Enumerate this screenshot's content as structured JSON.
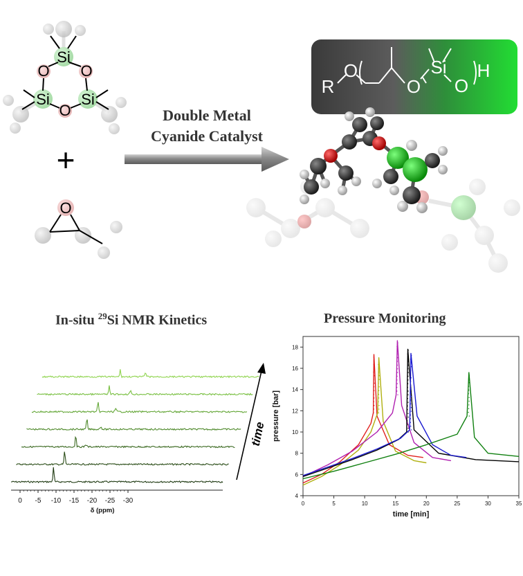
{
  "reaction": {
    "monomer1_atoms": [
      "Si",
      "O",
      "O",
      "Si",
      "O",
      "Si"
    ],
    "monomer2_atoms": [
      "O"
    ],
    "plus_sign": "+",
    "catalyst_line1": "Double Metal",
    "catalyst_line2": "Cyanide Catalyst",
    "product": {
      "R": "R",
      "O1": "O",
      "O2": "O",
      "Si": "Si",
      "O3": "O",
      "H": "H"
    }
  },
  "nmr": {
    "title_prefix": "In-situ ",
    "title_sup": "29",
    "title_suffix": "Si NMR Kinetics",
    "time_label": "time",
    "x_tick_labels": [
      "0",
      "-5",
      "-10",
      "-15",
      "-20",
      "-25",
      "-30"
    ],
    "xlabel": "δ (ppm)",
    "trace_colors": [
      "#1f3a12",
      "#2b4d18",
      "#3c6a22",
      "#4f8a2c",
      "#63a636",
      "#78bf40",
      "#8fd44e"
    ]
  },
  "pressure": {
    "title": "Pressure Monitoring",
    "chart_data": {
      "type": "line",
      "xlabel": "time [min]",
      "ylabel": "pressure [bar]",
      "xlim": [
        0,
        35
      ],
      "ylim": [
        4,
        19
      ],
      "x_ticks": [
        0,
        5,
        10,
        15,
        20,
        25,
        30,
        35
      ],
      "y_ticks": [
        4,
        6,
        8,
        10,
        12,
        14,
        16,
        18
      ],
      "grid": false,
      "series": [
        {
          "color": "#e0201e",
          "x": [
            0,
            3,
            6,
            9,
            11,
            11.4,
            11.5,
            12,
            14,
            17,
            19.5
          ],
          "y": [
            5.2,
            6.0,
            7.2,
            8.8,
            10.8,
            11.8,
            17.3,
            11.5,
            8.8,
            7.8,
            7.6
          ]
        },
        {
          "color": "#b0b010",
          "x": [
            0,
            3,
            6,
            9,
            11,
            12.1,
            12.3,
            13,
            15,
            18,
            20
          ],
          "y": [
            5.0,
            5.8,
            6.9,
            8.3,
            10.0,
            11.8,
            17.0,
            11.0,
            8.2,
            7.3,
            7.1
          ]
        },
        {
          "color": "#b020b0",
          "x": [
            0,
            4,
            8,
            12,
            14.5,
            15.1,
            15.3,
            16,
            18,
            21,
            24
          ],
          "y": [
            5.8,
            6.9,
            8.2,
            10.0,
            11.8,
            13.5,
            18.6,
            12.5,
            9.0,
            7.6,
            7.3
          ]
        },
        {
          "color": "#000000",
          "x": [
            0,
            4,
            8,
            12,
            15.5,
            16.8,
            17.0,
            18,
            22,
            28,
            35
          ],
          "y": [
            5.8,
            6.6,
            7.4,
            8.3,
            9.3,
            10.0,
            17.8,
            10.2,
            8.0,
            7.4,
            7.2
          ]
        },
        {
          "color": "#1a1ad0",
          "x": [
            0,
            4,
            8,
            12,
            15.8,
            17.3,
            17.5,
            18.5,
            21,
            24,
            26.5
          ],
          "y": [
            5.9,
            6.7,
            7.5,
            8.4,
            9.4,
            10.2,
            17.4,
            11.5,
            8.8,
            7.8,
            7.6
          ]
        },
        {
          "color": "#108010",
          "x": [
            0,
            5,
            10,
            15,
            20,
            25,
            26.6,
            26.9,
            27.8,
            30,
            35
          ],
          "y": [
            5.6,
            6.3,
            7.1,
            7.9,
            8.8,
            9.8,
            11.5,
            15.6,
            9.5,
            8.0,
            7.7
          ]
        }
      ]
    }
  }
}
